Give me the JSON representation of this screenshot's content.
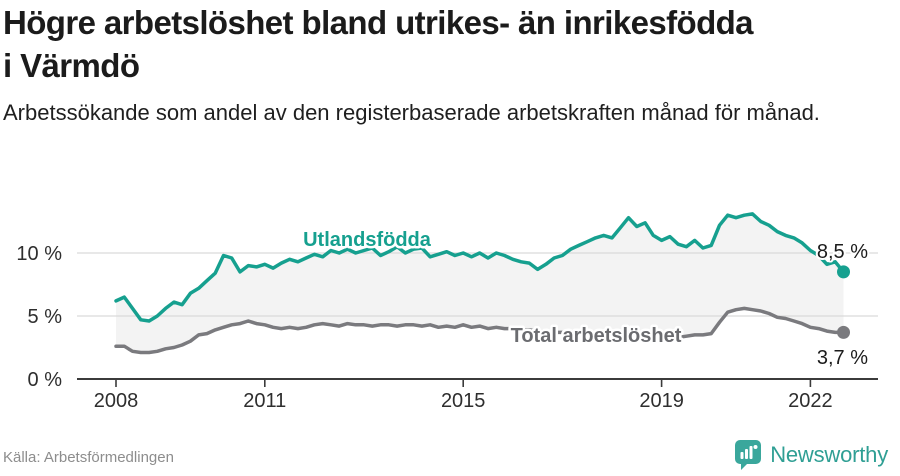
{
  "header": {
    "title": "Högre arbetslöshet bland utrikes- än inrikesfödda i Värmdö",
    "subtitle": "Arbetssökande som andel av den registerbaserade arbetskraften månad för månad."
  },
  "chart_data": {
    "type": "line",
    "title": "Högre arbetslöshet bland utrikes- än inrikesfödda i Värmdö",
    "subtitle": "Arbetssökande som andel av den registerbaserade arbetskraften månad för månad.",
    "x_start": 2008,
    "points_per_year": 6,
    "x_end_approx": 2022.67,
    "x_ticks": [
      2008,
      2011,
      2015,
      2019,
      2022
    ],
    "y_ticks": [
      {
        "value": 0,
        "label": "0 %"
      },
      {
        "value": 5,
        "label": "5 %"
      },
      {
        "value": 10,
        "label": "10 %"
      }
    ],
    "ylim": [
      0,
      13.8
    ],
    "grid": true,
    "legend_position": "inline-labels",
    "fill_between_color": "#f3f3f3",
    "series": [
      {
        "name": "Utlandsfödda",
        "color": "#16a08f",
        "label_color": "#16a08f",
        "end_label": "8,5 %",
        "end_value": 8.5,
        "values": [
          6.2,
          6.5,
          5.6,
          4.7,
          4.6,
          5.0,
          5.6,
          6.1,
          5.9,
          6.8,
          7.2,
          7.8,
          8.4,
          9.8,
          9.6,
          8.5,
          9.0,
          8.9,
          9.1,
          8.8,
          9.2,
          9.5,
          9.3,
          9.6,
          9.9,
          9.7,
          10.2,
          10.0,
          10.3,
          10.0,
          10.2,
          10.4,
          9.8,
          10.1,
          10.5,
          10.0,
          10.3,
          10.4,
          9.7,
          9.9,
          10.1,
          9.8,
          10.0,
          9.7,
          10.0,
          9.6,
          10.0,
          9.8,
          9.5,
          9.3,
          9.2,
          8.7,
          9.1,
          9.6,
          9.8,
          10.3,
          10.6,
          10.9,
          11.2,
          11.4,
          11.2,
          12.0,
          12.8,
          12.1,
          12.4,
          11.4,
          11.0,
          11.3,
          10.7,
          10.5,
          11.0,
          10.4,
          10.6,
          12.2,
          13.0,
          12.8,
          13.0,
          13.1,
          12.5,
          12.2,
          11.7,
          11.4,
          11.2,
          10.8,
          10.2,
          9.8,
          9.1,
          9.3,
          8.5
        ]
      },
      {
        "name": "Total arbetslöshet",
        "color": "#7a7a7e",
        "label_color": "#6b6c70",
        "end_label": "3,7 %",
        "end_value": 3.7,
        "values": [
          2.6,
          2.6,
          2.2,
          2.1,
          2.1,
          2.2,
          2.4,
          2.5,
          2.7,
          3.0,
          3.5,
          3.6,
          3.9,
          4.1,
          4.3,
          4.4,
          4.6,
          4.4,
          4.3,
          4.1,
          4.0,
          4.1,
          4.0,
          4.1,
          4.3,
          4.4,
          4.3,
          4.2,
          4.4,
          4.3,
          4.3,
          4.2,
          4.3,
          4.3,
          4.2,
          4.3,
          4.3,
          4.2,
          4.3,
          4.1,
          4.2,
          4.1,
          4.3,
          4.1,
          4.2,
          4.0,
          4.1,
          4.0,
          4.0,
          3.9,
          3.9,
          3.8,
          3.8,
          3.7,
          3.7,
          3.6,
          3.6,
          3.5,
          3.5,
          3.4,
          3.4,
          3.3,
          3.3,
          3.2,
          3.3,
          3.3,
          3.3,
          3.4,
          3.3,
          3.4,
          3.5,
          3.5,
          3.6,
          4.5,
          5.3,
          5.5,
          5.6,
          5.5,
          5.4,
          5.2,
          4.9,
          4.8,
          4.6,
          4.4,
          4.1,
          4.0,
          3.8,
          3.7,
          3.7
        ]
      }
    ]
  },
  "footer": {
    "source": "Källa: Arbetsförmedlingen",
    "brand": "Newsworthy"
  },
  "colors": {
    "accent_teal": "#16a08f",
    "gray_line": "#7a7a7e",
    "area_fill": "#f3f3f3",
    "gridline": "#d9d9d9",
    "axis": "#3b3b3b",
    "logo_teal": "#3aa79c"
  }
}
